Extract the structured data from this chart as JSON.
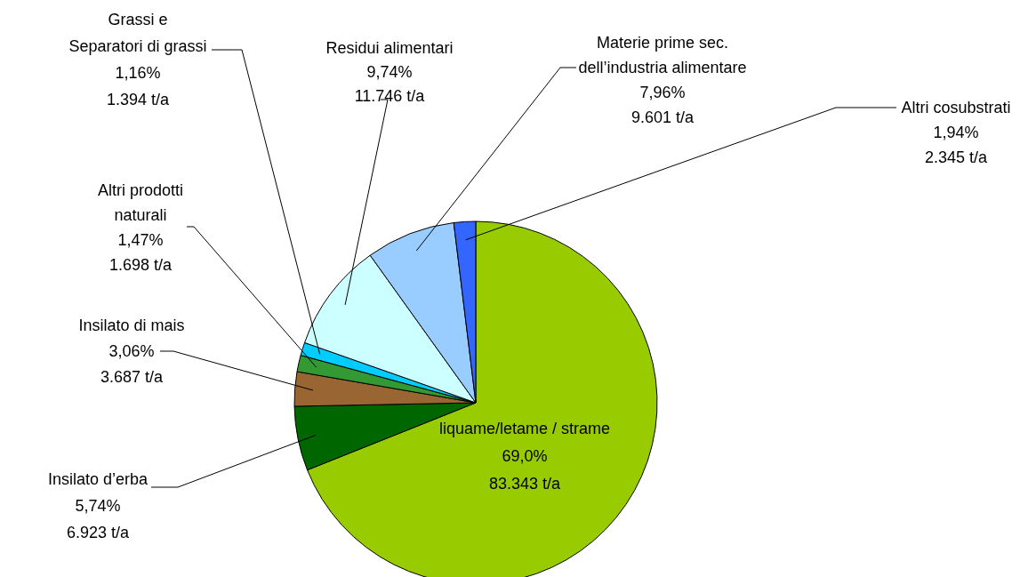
{
  "chart_data": {
    "type": "pie",
    "categories": [
      "liquame/letame / strame",
      "Insilato d’erba",
      "Insilato di mais",
      "Altri prodotti\nnaturali",
      "Grassi e\nSeparatori di grassi",
      "Residui alimentari",
      "Materie prime sec.\ndell’industria alimentare",
      "Altri cosubstrati"
    ],
    "values": [
      69.0,
      5.74,
      3.06,
      1.47,
      1.16,
      9.74,
      7.96,
      1.94
    ],
    "colors": [
      "#99cc00",
      "#006600",
      "#996633",
      "#339933",
      "#00ccff",
      "#ccffff",
      "#99ccff",
      "#3366ff"
    ],
    "value_labels": [
      "69,0%\n83.343 t/a",
      "5,74%\n6.923 t/a",
      "3,06%\n3.687 t/a",
      "1,47%\n1.698 t/a",
      "1,16%\n1.394 t/a",
      "9,74%\n11.746 t/a",
      "7,96%\n9.601 t/a",
      "1,94%\n2.345 t/a"
    ]
  }
}
